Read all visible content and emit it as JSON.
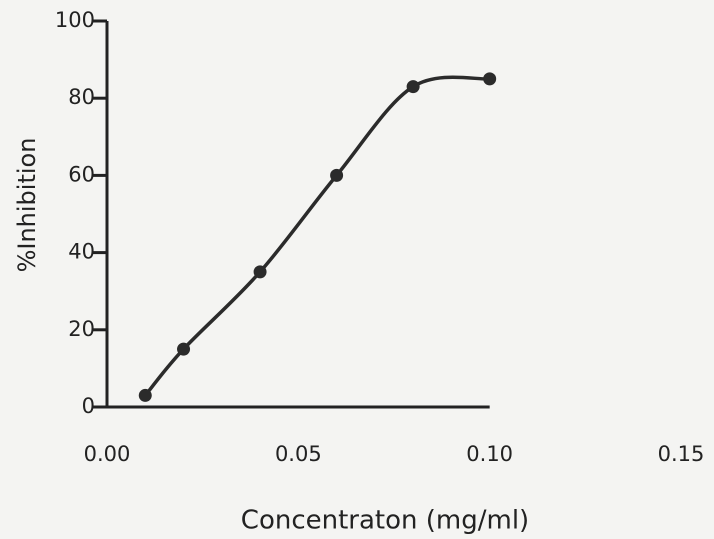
{
  "chart_data": {
    "type": "line",
    "x_label": "Concentraton (mg/ml)",
    "y_label": "%Inhibition",
    "x": [
      0.01,
      0.02,
      0.04,
      0.06,
      0.08,
      0.1
    ],
    "series": [
      {
        "color": "#2b2b2b",
        "values": [
          3,
          15,
          35,
          60,
          83,
          85
        ]
      }
    ],
    "xlim": [
      0,
      0.15
    ],
    "xticks": [
      {
        "value": 0,
        "label": "0.00"
      },
      {
        "value": 0.05,
        "label": "0.05"
      },
      {
        "value": 0.1,
        "label": "0.10"
      },
      {
        "value": 0.15,
        "label": "0.15"
      }
    ],
    "ylim": [
      0,
      100
    ],
    "yticks": [
      0,
      20,
      40,
      60,
      80,
      100
    ],
    "smooth": true
  }
}
